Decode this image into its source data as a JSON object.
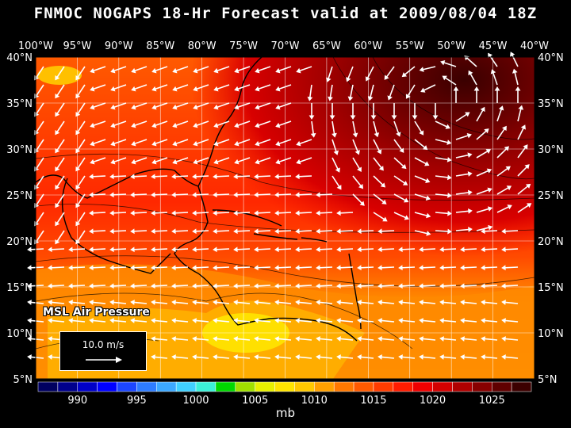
{
  "title": "FNMOC NOGAPS 18-Hr Forecast valid at 2009/08/04 18Z",
  "field_label": "MSL Air Pressure",
  "vector_legend": "10.0 m/s",
  "units": "mb",
  "longitude_labels": [
    "100°W",
    "95°W",
    "90°W",
    "85°W",
    "80°W",
    "75°W",
    "70°W",
    "65°W",
    "60°W",
    "55°W",
    "50°W",
    "45°W",
    "40°W"
  ],
  "latitude_labels": [
    "40°N",
    "35°N",
    "30°N",
    "25°N",
    "20°N",
    "15°N",
    "10°N",
    "5°N"
  ],
  "colorbar": {
    "tick_labels": [
      "990",
      "995",
      "1000",
      "1005",
      "1010",
      "1015",
      "1020",
      "1025"
    ],
    "colors": [
      "#000060",
      "#00008c",
      "#0000c8",
      "#0000ff",
      "#1c46ff",
      "#2e7cff",
      "#3ca8ff",
      "#40d0ff",
      "#3cf0d8",
      "#00d800",
      "#a0e000",
      "#e8f000",
      "#ffe400",
      "#ffc800",
      "#ffa000",
      "#ff7800",
      "#ff5a00",
      "#ff3c00",
      "#ff1c00",
      "#f00000",
      "#d40000",
      "#b00000",
      "#880000",
      "#600000",
      "#3c0000"
    ]
  },
  "colors": {
    "coast": "#000000",
    "grid": "#ffffff",
    "vector": "#ffffff"
  }
}
